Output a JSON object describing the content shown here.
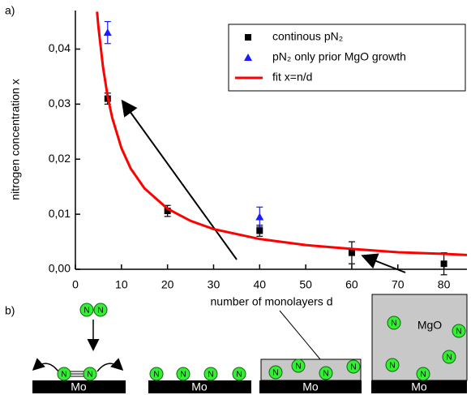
{
  "chart_data": {
    "type": "scatter",
    "panel_labels": [
      "a)",
      "b)"
    ],
    "x_label": "number of monolayers d",
    "y_label": "nitrogen concentration x",
    "xlim": [
      0,
      85
    ],
    "ylim": [
      0,
      0.047
    ],
    "xticks": [
      0,
      10,
      20,
      30,
      40,
      50,
      60,
      70,
      80
    ],
    "yticks": [
      {
        "value": 0,
        "label": "0,00"
      },
      {
        "value": 0.01,
        "label": "0,01"
      },
      {
        "value": 0.02,
        "label": "0,02"
      },
      {
        "value": 0.03,
        "label": "0,03"
      },
      {
        "value": 0.04,
        "label": "0,04"
      }
    ],
    "legend": "upper right",
    "series": [
      {
        "name": "continous pN₂",
        "color": "#000000",
        "marker": "square",
        "x": [
          7,
          20,
          40,
          60,
          80
        ],
        "values": [
          0.031,
          0.0106,
          0.007,
          0.003,
          0.001
        ],
        "errors": [
          0.001,
          0.001,
          0.001,
          0.002,
          0.002
        ]
      },
      {
        "name": "pN₂ only prior MgO growth",
        "color": "#1a1aff",
        "marker": "triangle",
        "x": [
          7,
          40
        ],
        "values": [
          0.043,
          0.0095
        ],
        "errors": [
          0.002,
          0.0018
        ]
      },
      {
        "name": "fit x=n/d",
        "color": "#ff0000",
        "marker": "line",
        "x": [
          4.7,
          5,
          6,
          7,
          8,
          10,
          12,
          15,
          20,
          25,
          30,
          40,
          50,
          60,
          70,
          80,
          85
        ],
        "values": [
          0.0468,
          0.044,
          0.0367,
          0.0314,
          0.0275,
          0.022,
          0.0183,
          0.0147,
          0.011,
          0.0088,
          0.0073,
          0.0055,
          0.0044,
          0.0037,
          0.0031,
          0.0028,
          0.0026
        ]
      }
    ]
  },
  "diagram": {
    "substrate": "Mo",
    "atom": "N",
    "oxide": "MgO"
  }
}
